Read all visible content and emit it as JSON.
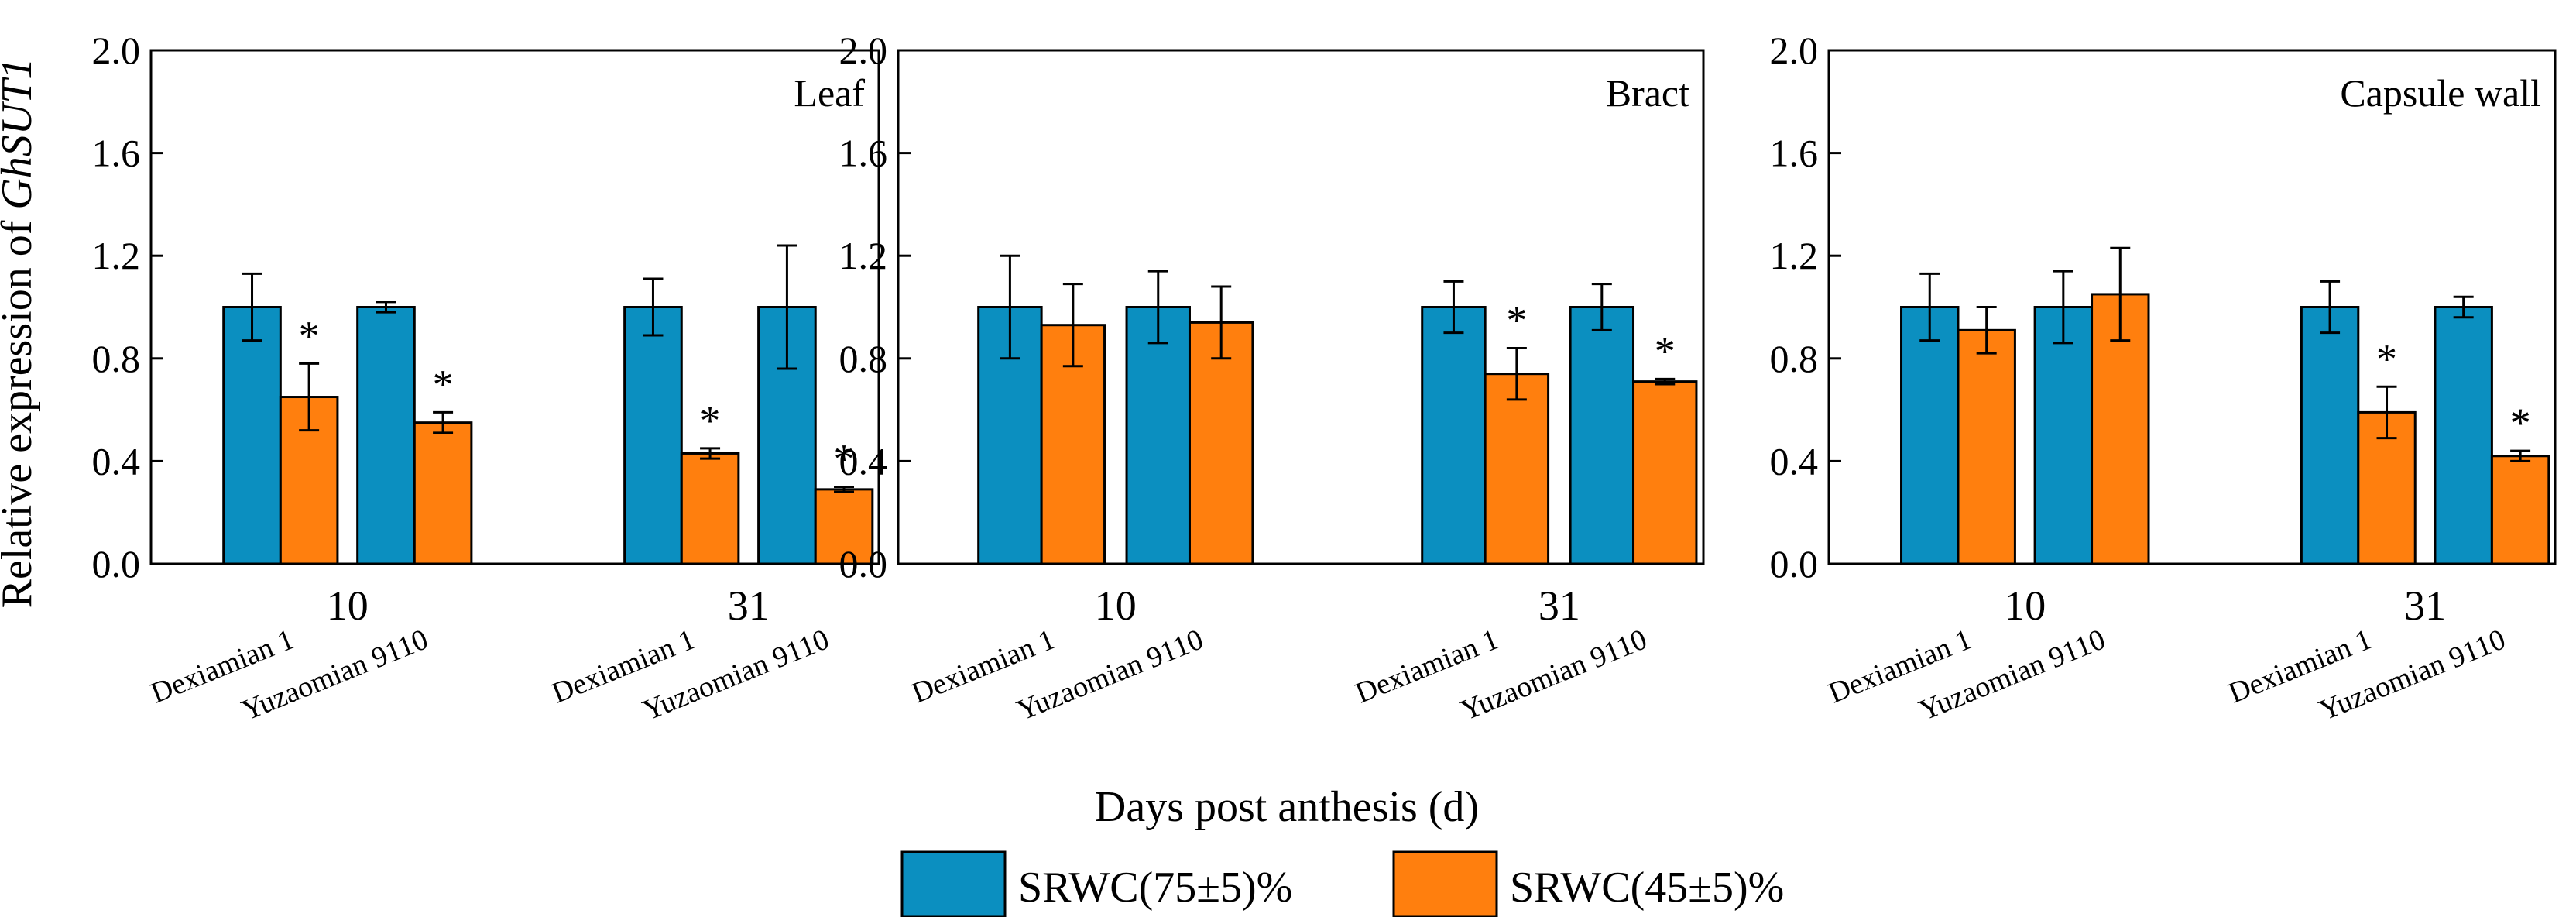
{
  "chart_data": {
    "type": "bar",
    "y_label_prefix": "Relative expression of ",
    "y_label_gene": "GhSUT1",
    "x_label": "Days post anthesis (d)",
    "ylim": [
      0,
      2.0
    ],
    "yticks": [
      "0.0",
      "0.4",
      "0.8",
      "1.2",
      "1.6",
      "2.0"
    ],
    "legend": [
      {
        "name": "SRWC(75±5)%",
        "color": "#0b8fc0"
      },
      {
        "name": "SRWC(45±5)%",
        "color": "#ff7f0e"
      }
    ],
    "panels": [
      {
        "title": "Leaf",
        "days": [
          "10",
          "31"
        ],
        "varieties": [
          "Dexiamian 1",
          "Yuzaomian 9110",
          "Dexiamian 1",
          "Yuzaomian 9110"
        ],
        "groups": [
          {
            "day": "10",
            "variety": "Dexiamian 1",
            "control": 1.0,
            "control_err": 0.13,
            "drought": 0.65,
            "drought_err": 0.13,
            "sig": "*"
          },
          {
            "day": "10",
            "variety": "Yuzaomian 9110",
            "control": 1.0,
            "control_err": 0.02,
            "drought": 0.55,
            "drought_err": 0.04,
            "sig": "*"
          },
          {
            "day": "31",
            "variety": "Dexiamian 1",
            "control": 1.0,
            "control_err": 0.11,
            "drought": 0.43,
            "drought_err": 0.02,
            "sig": "*"
          },
          {
            "day": "31",
            "variety": "Yuzaomian 9110",
            "control": 1.0,
            "control_err": 0.24,
            "drought": 0.29,
            "drought_err": 0.01,
            "sig": "*"
          }
        ]
      },
      {
        "title": "Bract",
        "days": [
          "10",
          "31"
        ],
        "varieties": [
          "Dexiamian 1",
          "Yuzaomian 9110",
          "Dexiamian 1",
          "Yuzaomian 9110"
        ],
        "groups": [
          {
            "day": "10",
            "variety": "Dexiamian 1",
            "control": 1.0,
            "control_err": 0.2,
            "drought": 0.93,
            "drought_err": 0.16,
            "sig": ""
          },
          {
            "day": "10",
            "variety": "Yuzaomian 9110",
            "control": 1.0,
            "control_err": 0.14,
            "drought": 0.94,
            "drought_err": 0.14,
            "sig": ""
          },
          {
            "day": "31",
            "variety": "Dexiamian 1",
            "control": 1.0,
            "control_err": 0.1,
            "drought": 0.74,
            "drought_err": 0.1,
            "sig": "*"
          },
          {
            "day": "31",
            "variety": "Yuzaomian 9110",
            "control": 1.0,
            "control_err": 0.09,
            "drought": 0.71,
            "drought_err": 0.01,
            "sig": "*"
          }
        ]
      },
      {
        "title": "Capsule wall",
        "days": [
          "10",
          "31"
        ],
        "varieties": [
          "Dexiamian 1",
          "Yuzaomian 9110",
          "Dexiamian 1",
          "Yuzaomian 9110"
        ],
        "groups": [
          {
            "day": "10",
            "variety": "Dexiamian 1",
            "control": 1.0,
            "control_err": 0.13,
            "drought": 0.91,
            "drought_err": 0.09,
            "sig": ""
          },
          {
            "day": "10",
            "variety": "Yuzaomian 9110",
            "control": 1.0,
            "control_err": 0.14,
            "drought": 1.05,
            "drought_err": 0.18,
            "sig": ""
          },
          {
            "day": "31",
            "variety": "Dexiamian 1",
            "control": 1.0,
            "control_err": 0.1,
            "drought": 0.59,
            "drought_err": 0.1,
            "sig": "*"
          },
          {
            "day": "31",
            "variety": "Yuzaomian 9110",
            "control": 1.0,
            "control_err": 0.04,
            "drought": 0.42,
            "drought_err": 0.02,
            "sig": "*"
          }
        ]
      }
    ]
  }
}
